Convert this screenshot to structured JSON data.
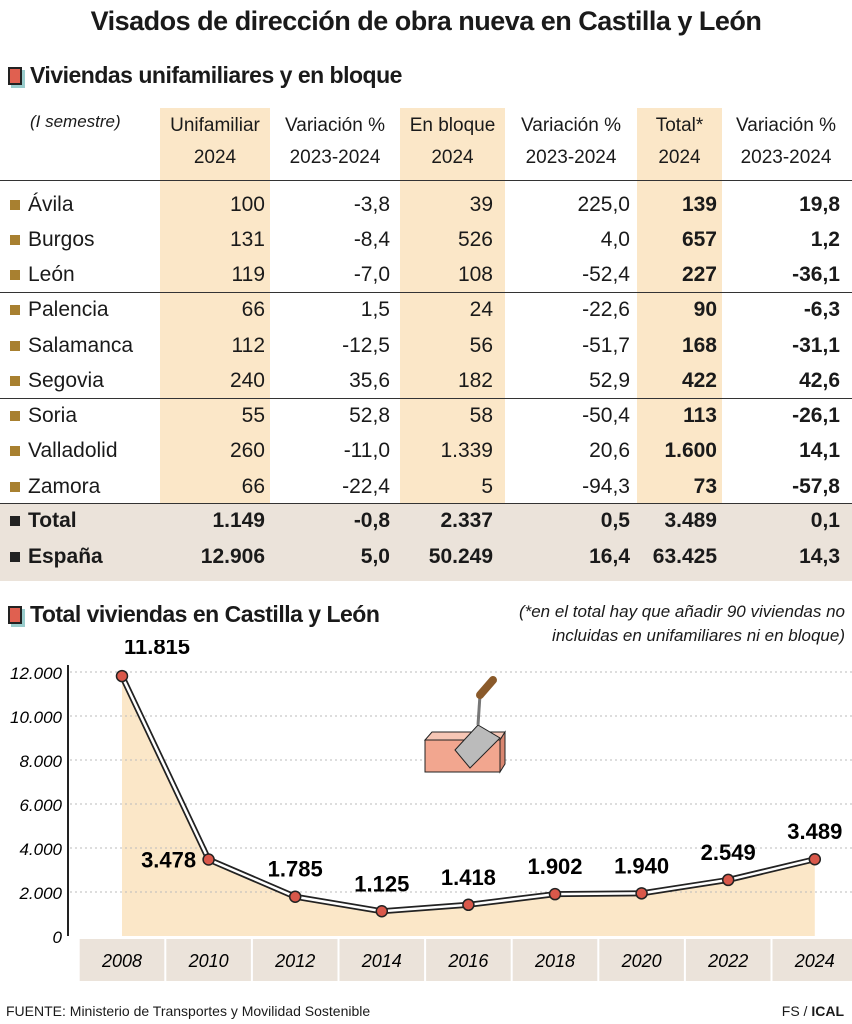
{
  "title": "Visados de dirección de obra nueva en Castilla y León",
  "table": {
    "section_title": "Viviendas unifamiliares y en bloque",
    "period": "(I semestre)",
    "headers": [
      [
        "Unifamiliar",
        "2024"
      ],
      [
        "Variación %",
        "2023-2024"
      ],
      [
        "En bloque",
        "2024"
      ],
      [
        "Variación %",
        "2023-2024"
      ],
      [
        "Total*",
        "2024"
      ],
      [
        "Variación %",
        "2023-2024"
      ]
    ],
    "rows": [
      [
        "Ávila",
        "100",
        "-3,8",
        "39",
        "225,0",
        "139",
        "19,8"
      ],
      [
        "Burgos",
        "131",
        "-8,4",
        "526",
        "4,0",
        "657",
        "1,2"
      ],
      [
        "León",
        "119",
        "-7,0",
        "108",
        "-52,4",
        "227",
        "-36,1"
      ],
      [
        "Palencia",
        "66",
        "1,5",
        "24",
        "-22,6",
        "90",
        "-6,3"
      ],
      [
        "Salamanca",
        "112",
        "-12,5",
        "56",
        "-51,7",
        "168",
        "-31,1"
      ],
      [
        "Segovia",
        "240",
        "35,6",
        "182",
        "52,9",
        "422",
        "42,6"
      ],
      [
        "Soria",
        "55",
        "52,8",
        "58",
        "-50,4",
        "113",
        "-26,1"
      ],
      [
        "Valladolid",
        "260",
        "-11,0",
        "1.339",
        "20,6",
        "1.600",
        "14,1"
      ],
      [
        "Zamora",
        "66",
        "-22,4",
        "5",
        "-94,3",
        "73",
        "-57,8"
      ]
    ],
    "totals": [
      [
        "Total",
        "1.149",
        "-0,8",
        "2.337",
        "0,5",
        "3.489",
        "0,1"
      ],
      [
        "España",
        "12.906",
        "5,0",
        "50.249",
        "16,4",
        "63.425",
        "14,3"
      ]
    ]
  },
  "chart_data": {
    "type": "line",
    "title": "Total viviendas en Castilla y León",
    "note": "(*en el total hay que añadir 90 viviendas no incluidas en unifamiliares ni en bloque)",
    "x": [
      "2008",
      "2010",
      "2012",
      "2014",
      "2016",
      "2018",
      "2020",
      "2022",
      "2024"
    ],
    "values": [
      11815,
      3478,
      1785,
      1125,
      1418,
      1902,
      1940,
      2549,
      3489
    ],
    "labels": [
      "11.815",
      "3.478",
      "1.785",
      "1.125",
      "1.418",
      "1.902",
      "1.940",
      "2.549",
      "3.489"
    ],
    "yticks": [
      0,
      2000,
      4000,
      6000,
      8000,
      10000,
      12000
    ],
    "ytick_labels": [
      "0",
      "2.000",
      "4.000",
      "6.000",
      "8.000",
      "10.000",
      "12.000"
    ],
    "ylim": [
      0,
      12000
    ],
    "grid": true,
    "colors": {
      "area": "#fbe7c8",
      "marker": "#d9584a",
      "line": "#222222"
    }
  },
  "footer": {
    "source": "FUENTE: Ministerio de Transportes y Movilidad Sostenible",
    "credit_a": "FS / ",
    "credit_b": "ICAL"
  }
}
